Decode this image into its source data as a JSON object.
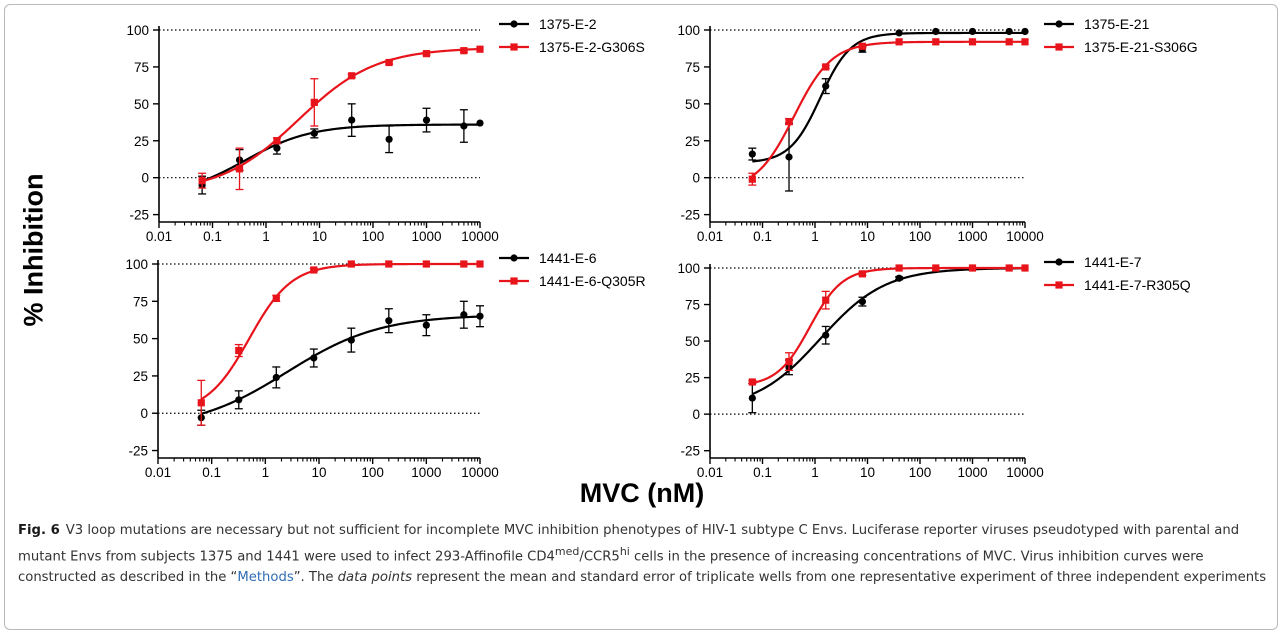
{
  "figure": {
    "y_axis_label": "% Inhibition",
    "x_axis_label": "MVC (nM)",
    "caption": {
      "fig_number": "Fig. 6",
      "part1": "V3 loop mutations are necessary but not sufficient for incomplete MVC inhibition phenotypes of HIV-1 subtype C Envs. Luciferase reporter viruses pseudotyped with parental and mutant Envs from subjects 1375 and 1441 were used to infect 293-Affinofile CD4",
      "sup1": "med",
      "part2": "/CCR5",
      "sup2": "hi",
      "part3": " cells in the presence of increasing concentrations of MVC. Virus inhibition curves were constructed as described in the “",
      "link_text": "Methods",
      "part4": "”. The ",
      "italic_text": "data points",
      "part5": " represent the mean and standard error of triplicate wells from one representative experiment of three independent experiments"
    }
  },
  "colors": {
    "parental": "#000000",
    "mutant": "#e8141b"
  },
  "chart_data": [
    {
      "type": "line",
      "x_scale": "log",
      "xlim": [
        0.01,
        10000
      ],
      "ylim": [
        -30,
        100
      ],
      "x_ticks": [
        0.01,
        0.1,
        1,
        10,
        100,
        1000,
        10000
      ],
      "x_tick_labels": [
        "0.01",
        "0.1",
        "1",
        "10",
        "100",
        "1000",
        "10000"
      ],
      "y_ticks": [
        -25,
        0,
        25,
        50,
        75,
        100
      ],
      "y_tick_labels": [
        "-25",
        "0",
        "25",
        "50",
        "75",
        "100"
      ],
      "legend": "right",
      "series": [
        {
          "name": "1375-E-2",
          "marker": "circle",
          "color": "#000000",
          "x": [
            0.064,
            0.32,
            1.6,
            8,
            40,
            200,
            1000,
            5000,
            10000
          ],
          "y": [
            -5,
            12,
            20,
            30,
            39,
            26,
            39,
            35,
            37
          ],
          "err": [
            6,
            7,
            4,
            3,
            11,
            9,
            8,
            11,
            0
          ]
        },
        {
          "name": "1375-E-2-G306S",
          "marker": "square",
          "color": "#e8141b",
          "x": [
            0.064,
            0.32,
            1.6,
            8,
            40,
            200,
            1000,
            5000,
            10000
          ],
          "y": [
            -2,
            6,
            25,
            51,
            69,
            78,
            84,
            86,
            87
          ],
          "err": [
            5,
            14,
            2,
            16,
            1,
            1,
            1,
            1,
            0
          ]
        }
      ]
    },
    {
      "type": "line",
      "x_scale": "log",
      "xlim": [
        0.01,
        10000
      ],
      "ylim": [
        -30,
        100
      ],
      "x_ticks": [
        0.01,
        0.1,
        1,
        10,
        100,
        1000,
        10000
      ],
      "x_tick_labels": [
        "0.01",
        "0.1",
        "1",
        "10",
        "100",
        "1000",
        "10000"
      ],
      "y_ticks": [
        -25,
        0,
        25,
        50,
        75,
        100
      ],
      "y_tick_labels": [
        "-25",
        "0",
        "25",
        "50",
        "75",
        "100"
      ],
      "legend": "right",
      "series": [
        {
          "name": "1375-E-21",
          "marker": "circle",
          "color": "#000000",
          "x": [
            0.064,
            0.32,
            1.6,
            8,
            40,
            200,
            1000,
            5000,
            10000
          ],
          "y": [
            16,
            14,
            62,
            87,
            98,
            99,
            99,
            99,
            99
          ],
          "err": [
            4,
            23,
            5,
            2,
            0,
            0,
            0,
            0,
            0
          ]
        },
        {
          "name": "1375-E-21-S306G",
          "marker": "square",
          "color": "#e8141b",
          "x": [
            0.064,
            0.32,
            1.6,
            8,
            40,
            200,
            1000,
            5000,
            10000
          ],
          "y": [
            -1,
            38,
            75,
            89,
            92,
            92,
            92,
            92,
            92
          ],
          "err": [
            4,
            2,
            1,
            1,
            0,
            0,
            0,
            0,
            0
          ]
        }
      ]
    },
    {
      "type": "line",
      "x_scale": "log",
      "xlim": [
        0.01,
        10000
      ],
      "ylim": [
        -30,
        100
      ],
      "x_ticks": [
        0.01,
        0.1,
        1,
        10,
        100,
        1000,
        10000
      ],
      "x_tick_labels": [
        "0.01",
        "0.1",
        "1",
        "10",
        "100",
        "1000",
        "10000"
      ],
      "y_ticks": [
        -25,
        0,
        25,
        50,
        75,
        100
      ],
      "y_tick_labels": [
        "-25",
        "0",
        "25",
        "50",
        "75",
        "100"
      ],
      "legend": "right",
      "series": [
        {
          "name": "1441-E-6",
          "marker": "circle",
          "color": "#000000",
          "x": [
            0.064,
            0.32,
            1.6,
            8,
            40,
            200,
            1000,
            5000,
            10000
          ],
          "y": [
            -3,
            9,
            24,
            37,
            49,
            62,
            59,
            66,
            65
          ],
          "err": [
            5,
            6,
            7,
            6,
            8,
            8,
            7,
            9,
            7
          ]
        },
        {
          "name": "1441-E-6-Q305R",
          "marker": "square",
          "color": "#e8141b",
          "x": [
            0.064,
            0.32,
            1.6,
            8,
            40,
            200,
            1000,
            5000,
            10000
          ],
          "y": [
            7,
            42,
            77,
            96,
            100,
            100,
            100,
            100,
            100
          ],
          "err": [
            15,
            4,
            2,
            1,
            0,
            0,
            0,
            0,
            0
          ]
        }
      ]
    },
    {
      "type": "line",
      "x_scale": "log",
      "xlim": [
        0.01,
        10000
      ],
      "ylim": [
        -30,
        100
      ],
      "x_ticks": [
        0.01,
        0.1,
        1,
        10,
        100,
        1000,
        10000
      ],
      "x_tick_labels": [
        "0.01",
        "0.1",
        "1",
        "10",
        "100",
        "1000",
        "10000"
      ],
      "y_ticks": [
        -25,
        0,
        25,
        50,
        75,
        100
      ],
      "y_tick_labels": [
        "-25",
        "0",
        "25",
        "50",
        "75",
        "100"
      ],
      "legend": "right",
      "series": [
        {
          "name": "1441-E-7",
          "marker": "circle",
          "color": "#000000",
          "x": [
            0.064,
            0.32,
            1.6,
            8,
            40,
            200,
            1000,
            5000,
            10000
          ],
          "y": [
            11,
            32,
            54,
            77,
            93,
            99,
            100,
            100,
            100
          ],
          "err": [
            10,
            5,
            6,
            3,
            1,
            0,
            0,
            0,
            0
          ]
        },
        {
          "name": "1441-E-7-R305Q",
          "marker": "square",
          "color": "#e8141b",
          "x": [
            0.064,
            0.32,
            1.6,
            8,
            40,
            200,
            1000,
            5000,
            10000
          ],
          "y": [
            22,
            36,
            78,
            96,
            100,
            100,
            100,
            100,
            100
          ],
          "err": [
            1,
            6,
            6,
            1,
            0,
            0,
            0,
            0,
            0
          ]
        }
      ]
    }
  ]
}
